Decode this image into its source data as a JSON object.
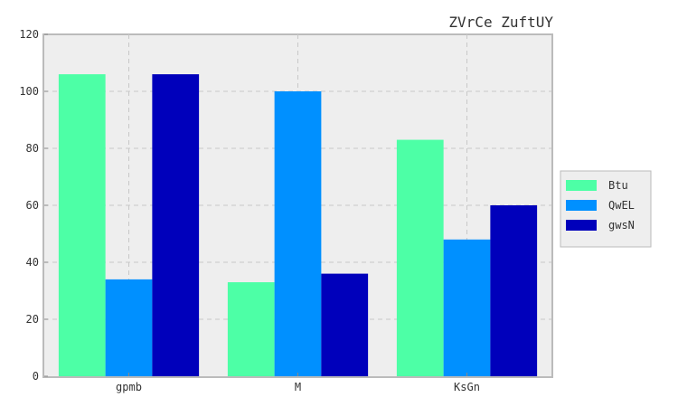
{
  "chart_data": {
    "type": "bar",
    "title": "ZVrCe ZuftUY",
    "xlabel": "",
    "ylabel": "",
    "categories": [
      "gpmb",
      "M",
      "KsGn"
    ],
    "series": [
      {
        "name": "Btu",
        "values": [
          106,
          33,
          83
        ],
        "color": "#4dffa6"
      },
      {
        "name": "QwEL",
        "values": [
          34,
          100,
          48
        ],
        "color": "#0090ff"
      },
      {
        "name": "gwsN",
        "values": [
          106,
          36,
          60
        ],
        "color": "#0000bb"
      }
    ],
    "ylim": [
      0,
      120
    ],
    "yticks": [
      0,
      20,
      40,
      60,
      80,
      100,
      120
    ],
    "grid": true,
    "legend_position": "right"
  }
}
